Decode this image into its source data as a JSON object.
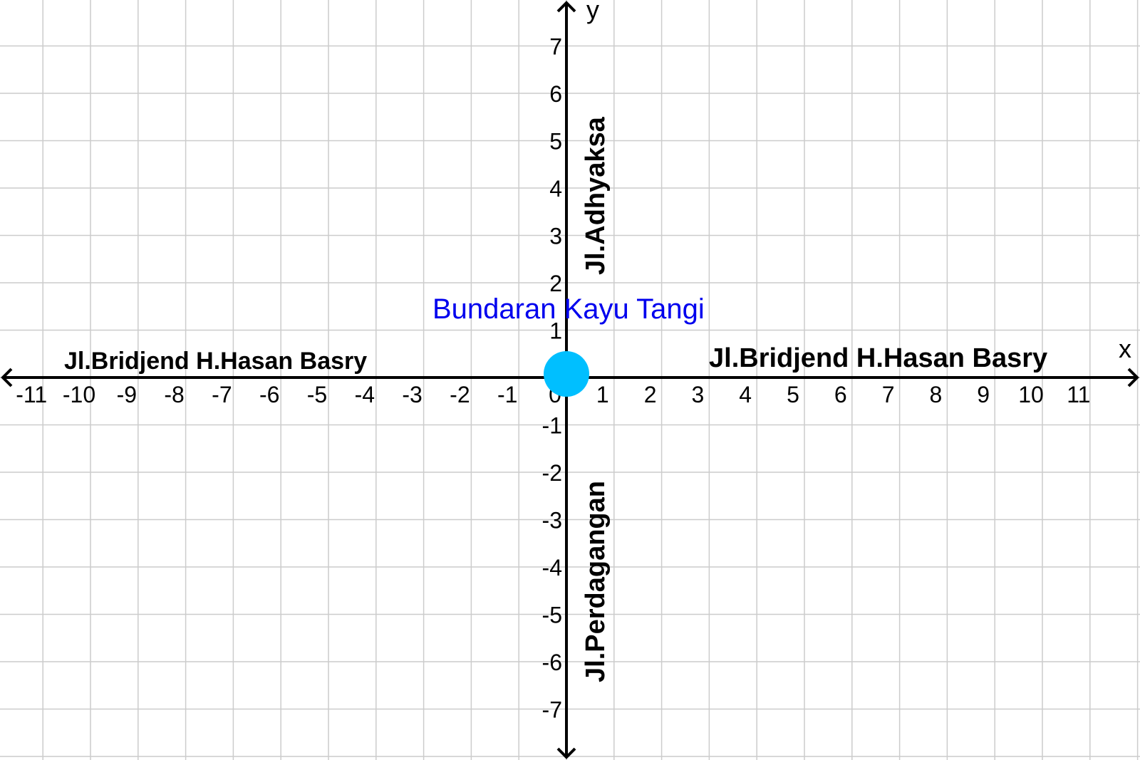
{
  "axes": {
    "x_label": "x",
    "y_label": "y",
    "x_range": [
      -12,
      12
    ],
    "y_range": [
      -8,
      8
    ],
    "x_ticks": [
      -11,
      -10,
      -9,
      -8,
      -7,
      -6,
      -5,
      -4,
      -3,
      -2,
      -1,
      0,
      1,
      2,
      3,
      4,
      5,
      6,
      7,
      8,
      9,
      10,
      11
    ],
    "y_ticks": [
      -7,
      -6,
      -5,
      -4,
      -3,
      -2,
      -1,
      1,
      2,
      3,
      4,
      5,
      6,
      7
    ],
    "grid": true
  },
  "roads": {
    "west": "Jl.Bridjend H.Hasan Basry",
    "east": "Jl.Bridjend H.Hasan Basry",
    "north": "Jl.Adhyaksa",
    "south": "Jl.Perdagangan"
  },
  "landmark": {
    "name": "Bundaran Kayu Tangi",
    "x": 0,
    "y": 0,
    "marker_color": "#00bfff",
    "label_color": "#0000ee"
  }
}
